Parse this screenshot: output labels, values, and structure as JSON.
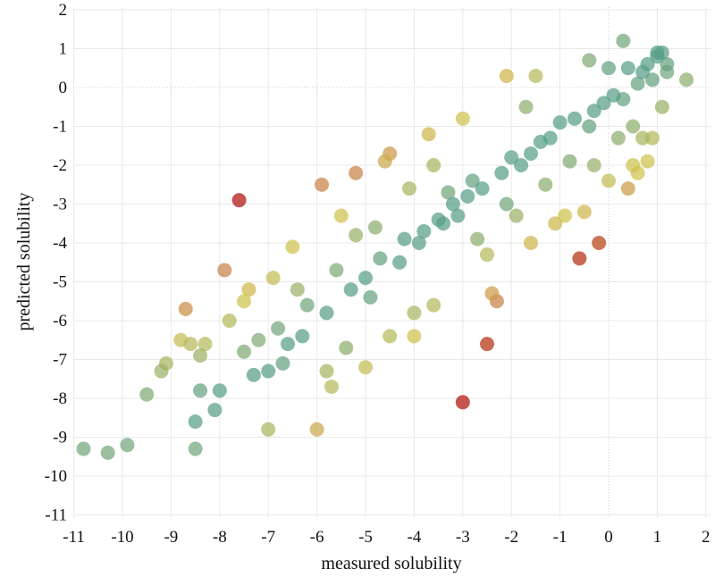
{
  "chart_data": {
    "type": "scatter",
    "xlabel": "measured solubility",
    "ylabel": "predicted solubility",
    "xlim": [
      -11.5,
      2.2
    ],
    "ylim": [
      -11.4,
      2.2
    ],
    "x_ticks": [
      -11,
      -10,
      -9,
      -8,
      -7,
      -6,
      -5,
      -4,
      -3,
      -2,
      -1,
      0,
      1,
      2
    ],
    "y_ticks": [
      2,
      1,
      0,
      -1,
      -2,
      -3,
      -4,
      -5,
      -6,
      -7,
      -8,
      -9,
      -10,
      -11
    ],
    "grid": true,
    "zero_reference_lines": true,
    "color_scale": {
      "low_error": "#4a9a8e",
      "mid_error": "#cfc24e",
      "high_error": "#c0413e"
    },
    "points": [
      [
        -10.8,
        -9.3,
        0.15
      ],
      [
        -10.3,
        -9.4,
        0.15
      ],
      [
        -9.9,
        -9.2,
        0.15
      ],
      [
        -9.5,
        -7.9,
        0.2
      ],
      [
        -9.2,
        -7.3,
        0.3
      ],
      [
        -9.1,
        -7.1,
        0.35
      ],
      [
        -8.8,
        -6.5,
        0.45
      ],
      [
        -8.7,
        -5.7,
        0.7
      ],
      [
        -8.6,
        -6.6,
        0.4
      ],
      [
        -8.5,
        -8.6,
        0.05
      ],
      [
        -8.5,
        -9.3,
        0.15
      ],
      [
        -8.4,
        -7.8,
        0.1
      ],
      [
        -8.4,
        -6.9,
        0.3
      ],
      [
        -8.3,
        -6.6,
        0.4
      ],
      [
        -8.1,
        -8.3,
        0.05
      ],
      [
        -8.0,
        -7.8,
        0.05
      ],
      [
        -7.9,
        -4.7,
        0.75
      ],
      [
        -7.8,
        -6.0,
        0.4
      ],
      [
        -7.6,
        -2.9,
        1.0
      ],
      [
        -7.5,
        -6.8,
        0.2
      ],
      [
        -7.5,
        -5.5,
        0.5
      ],
      [
        -7.4,
        -5.2,
        0.55
      ],
      [
        -7.3,
        -7.4,
        0.05
      ],
      [
        -7.2,
        -6.5,
        0.2
      ],
      [
        -7.0,
        -7.3,
        0.05
      ],
      [
        -7.0,
        -8.8,
        0.35
      ],
      [
        -6.9,
        -4.9,
        0.45
      ],
      [
        -6.8,
        -6.2,
        0.15
      ],
      [
        -6.7,
        -7.1,
        0.1
      ],
      [
        -6.6,
        -6.6,
        0.05
      ],
      [
        -6.5,
        -4.1,
        0.5
      ],
      [
        -6.4,
        -5.2,
        0.3
      ],
      [
        -6.3,
        -6.4,
        0.05
      ],
      [
        -6.2,
        -5.6,
        0.15
      ],
      [
        -6.0,
        -8.8,
        0.6
      ],
      [
        -5.9,
        -2.5,
        0.75
      ],
      [
        -5.8,
        -7.3,
        0.35
      ],
      [
        -5.8,
        -5.8,
        0.05
      ],
      [
        -5.7,
        -7.7,
        0.4
      ],
      [
        -5.6,
        -4.7,
        0.2
      ],
      [
        -5.5,
        -3.3,
        0.5
      ],
      [
        -5.4,
        -6.7,
        0.25
      ],
      [
        -5.3,
        -5.2,
        0.05
      ],
      [
        -5.2,
        -2.2,
        0.75
      ],
      [
        -5.2,
        -3.8,
        0.3
      ],
      [
        -5.0,
        -7.2,
        0.45
      ],
      [
        -5.0,
        -4.9,
        0.05
      ],
      [
        -4.9,
        -5.4,
        0.1
      ],
      [
        -4.8,
        -3.6,
        0.25
      ],
      [
        -4.7,
        -4.4,
        0.1
      ],
      [
        -4.6,
        -1.9,
        0.6
      ],
      [
        -4.5,
        -1.7,
        0.65
      ],
      [
        -4.5,
        -6.4,
        0.4
      ],
      [
        -4.3,
        -4.5,
        0.05
      ],
      [
        -4.2,
        -3.9,
        0.05
      ],
      [
        -4.1,
        -2.6,
        0.35
      ],
      [
        -4.0,
        -6.4,
        0.5
      ],
      [
        -4.0,
        -5.8,
        0.35
      ],
      [
        -3.9,
        -4.0,
        0.05
      ],
      [
        -3.8,
        -3.7,
        0.05
      ],
      [
        -3.7,
        -1.2,
        0.55
      ],
      [
        -3.6,
        -2.0,
        0.35
      ],
      [
        -3.6,
        -5.6,
        0.4
      ],
      [
        -3.5,
        -3.4,
        0.05
      ],
      [
        -3.4,
        -3.5,
        0.05
      ],
      [
        -3.3,
        -2.7,
        0.15
      ],
      [
        -3.2,
        -3.0,
        0.05
      ],
      [
        -3.1,
        -3.3,
        0.05
      ],
      [
        -3.0,
        -8.1,
        1.0
      ],
      [
        -3.0,
        -0.8,
        0.5
      ],
      [
        -2.9,
        -2.8,
        0.05
      ],
      [
        -2.8,
        -2.4,
        0.1
      ],
      [
        -2.7,
        -3.9,
        0.25
      ],
      [
        -2.6,
        -2.6,
        0.05
      ],
      [
        -2.5,
        -6.6,
        0.9
      ],
      [
        -2.5,
        -4.3,
        0.4
      ],
      [
        -2.4,
        -5.3,
        0.65
      ],
      [
        -2.3,
        -5.5,
        0.75
      ],
      [
        -2.2,
        -2.2,
        0.05
      ],
      [
        -2.1,
        -3.0,
        0.15
      ],
      [
        -2.1,
        0.3,
        0.55
      ],
      [
        -2.0,
        -1.8,
        0.05
      ],
      [
        -1.9,
        -3.3,
        0.3
      ],
      [
        -1.8,
        -2.0,
        0.05
      ],
      [
        -1.7,
        -0.5,
        0.25
      ],
      [
        -1.6,
        -1.7,
        0.05
      ],
      [
        -1.6,
        -4.0,
        0.55
      ],
      [
        -1.5,
        0.3,
        0.4
      ],
      [
        -1.4,
        -1.4,
        0.05
      ],
      [
        -1.3,
        -2.5,
        0.25
      ],
      [
        -1.2,
        -1.3,
        0.05
      ],
      [
        -1.1,
        -3.5,
        0.55
      ],
      [
        -1.0,
        -0.9,
        0.05
      ],
      [
        -0.9,
        -3.3,
        0.5
      ],
      [
        -0.8,
        -1.9,
        0.2
      ],
      [
        -0.7,
        -0.8,
        0.05
      ],
      [
        -0.6,
        -4.4,
        0.9
      ],
      [
        -0.5,
        -3.2,
        0.55
      ],
      [
        -0.4,
        0.7,
        0.2
      ],
      [
        -0.4,
        -1.0,
        0.1
      ],
      [
        -0.3,
        -0.6,
        0.05
      ],
      [
        -0.3,
        -2.0,
        0.3
      ],
      [
        -0.2,
        -4.0,
        0.85
      ],
      [
        -0.1,
        -0.4,
        0.05
      ],
      [
        0.0,
        0.5,
        0.1
      ],
      [
        0.0,
        -2.4,
        0.45
      ],
      [
        0.1,
        -0.2,
        0.05
      ],
      [
        0.2,
        -1.3,
        0.25
      ],
      [
        0.3,
        1.2,
        0.15
      ],
      [
        0.3,
        -0.3,
        0.1
      ],
      [
        0.4,
        -2.6,
        0.65
      ],
      [
        0.4,
        0.5,
        0.05
      ],
      [
        0.5,
        -1.0,
        0.25
      ],
      [
        0.5,
        -2.0,
        0.5
      ],
      [
        0.6,
        0.1,
        0.1
      ],
      [
        0.6,
        -2.2,
        0.5
      ],
      [
        0.7,
        -1.3,
        0.35
      ],
      [
        0.7,
        0.4,
        0.05
      ],
      [
        0.8,
        0.6,
        0.05
      ],
      [
        0.8,
        -1.9,
        0.5
      ],
      [
        0.9,
        -1.3,
        0.4
      ],
      [
        0.9,
        0.2,
        0.1
      ],
      [
        1.0,
        0.8,
        0.05
      ],
      [
        1.0,
        0.9,
        0.05
      ],
      [
        1.1,
        0.9,
        0.05
      ],
      [
        1.1,
        -0.5,
        0.3
      ],
      [
        1.2,
        0.4,
        0.15
      ],
      [
        1.2,
        0.6,
        0.1
      ],
      [
        1.6,
        0.2,
        0.25
      ]
    ]
  }
}
